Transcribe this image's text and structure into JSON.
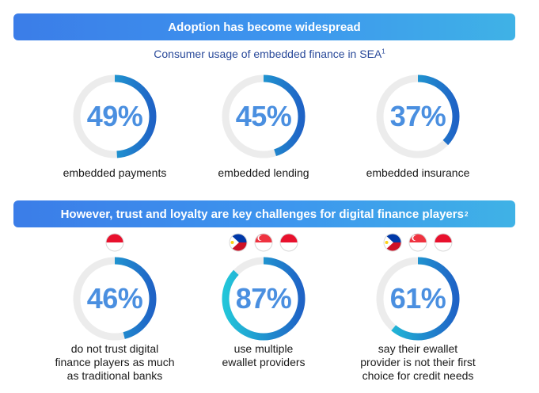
{
  "section1": {
    "banner": "Adoption has become widespread",
    "subtitle": "Consumer usage of embedded finance in SEA",
    "subtitle_footnote": "1"
  },
  "section2": {
    "banner": "However, trust and loyalty are key challenges for digital finance players",
    "banner_footnote": "2"
  },
  "colors": {
    "ring_track": "#ececec",
    "ring_gradient_start": "#1f63c6",
    "ring_gradient_end": "#22c5d9",
    "percent_text": "#4a8fe0"
  },
  "chart_data": [
    {
      "type": "donut",
      "title": "Consumer usage of embedded finance in SEA",
      "items": [
        {
          "label": "embedded payments",
          "value": 49,
          "display": "49%"
        },
        {
          "label": "embedded lending",
          "value": 45,
          "display": "45%"
        },
        {
          "label": "embedded insurance",
          "value": 37,
          "display": "37%"
        }
      ]
    },
    {
      "type": "donut",
      "title": "However, trust and loyalty are key challenges for digital finance players",
      "items": [
        {
          "label": "do not trust digital finance players as much as traditional banks",
          "caption_lines": [
            "do not trust digital",
            "finance players as much",
            "as traditional banks"
          ],
          "value": 46,
          "display": "46%",
          "flags": [
            "indonesia-flag"
          ]
        },
        {
          "label": "use multiple ewallet providers",
          "caption_lines": [
            "use multiple",
            "ewallet providers"
          ],
          "value": 87,
          "display": "87%",
          "flags": [
            "philippines-flag",
            "singapore-flag",
            "indonesia-flag"
          ]
        },
        {
          "label": "say their ewallet provider is not their first choice for credit needs",
          "caption_lines": [
            "say their ewallet",
            "provider is not their first",
            "choice for credit needs"
          ],
          "value": 61,
          "display": "61%",
          "flags": [
            "philippines-flag",
            "singapore-flag",
            "indonesia-flag"
          ]
        }
      ]
    }
  ]
}
